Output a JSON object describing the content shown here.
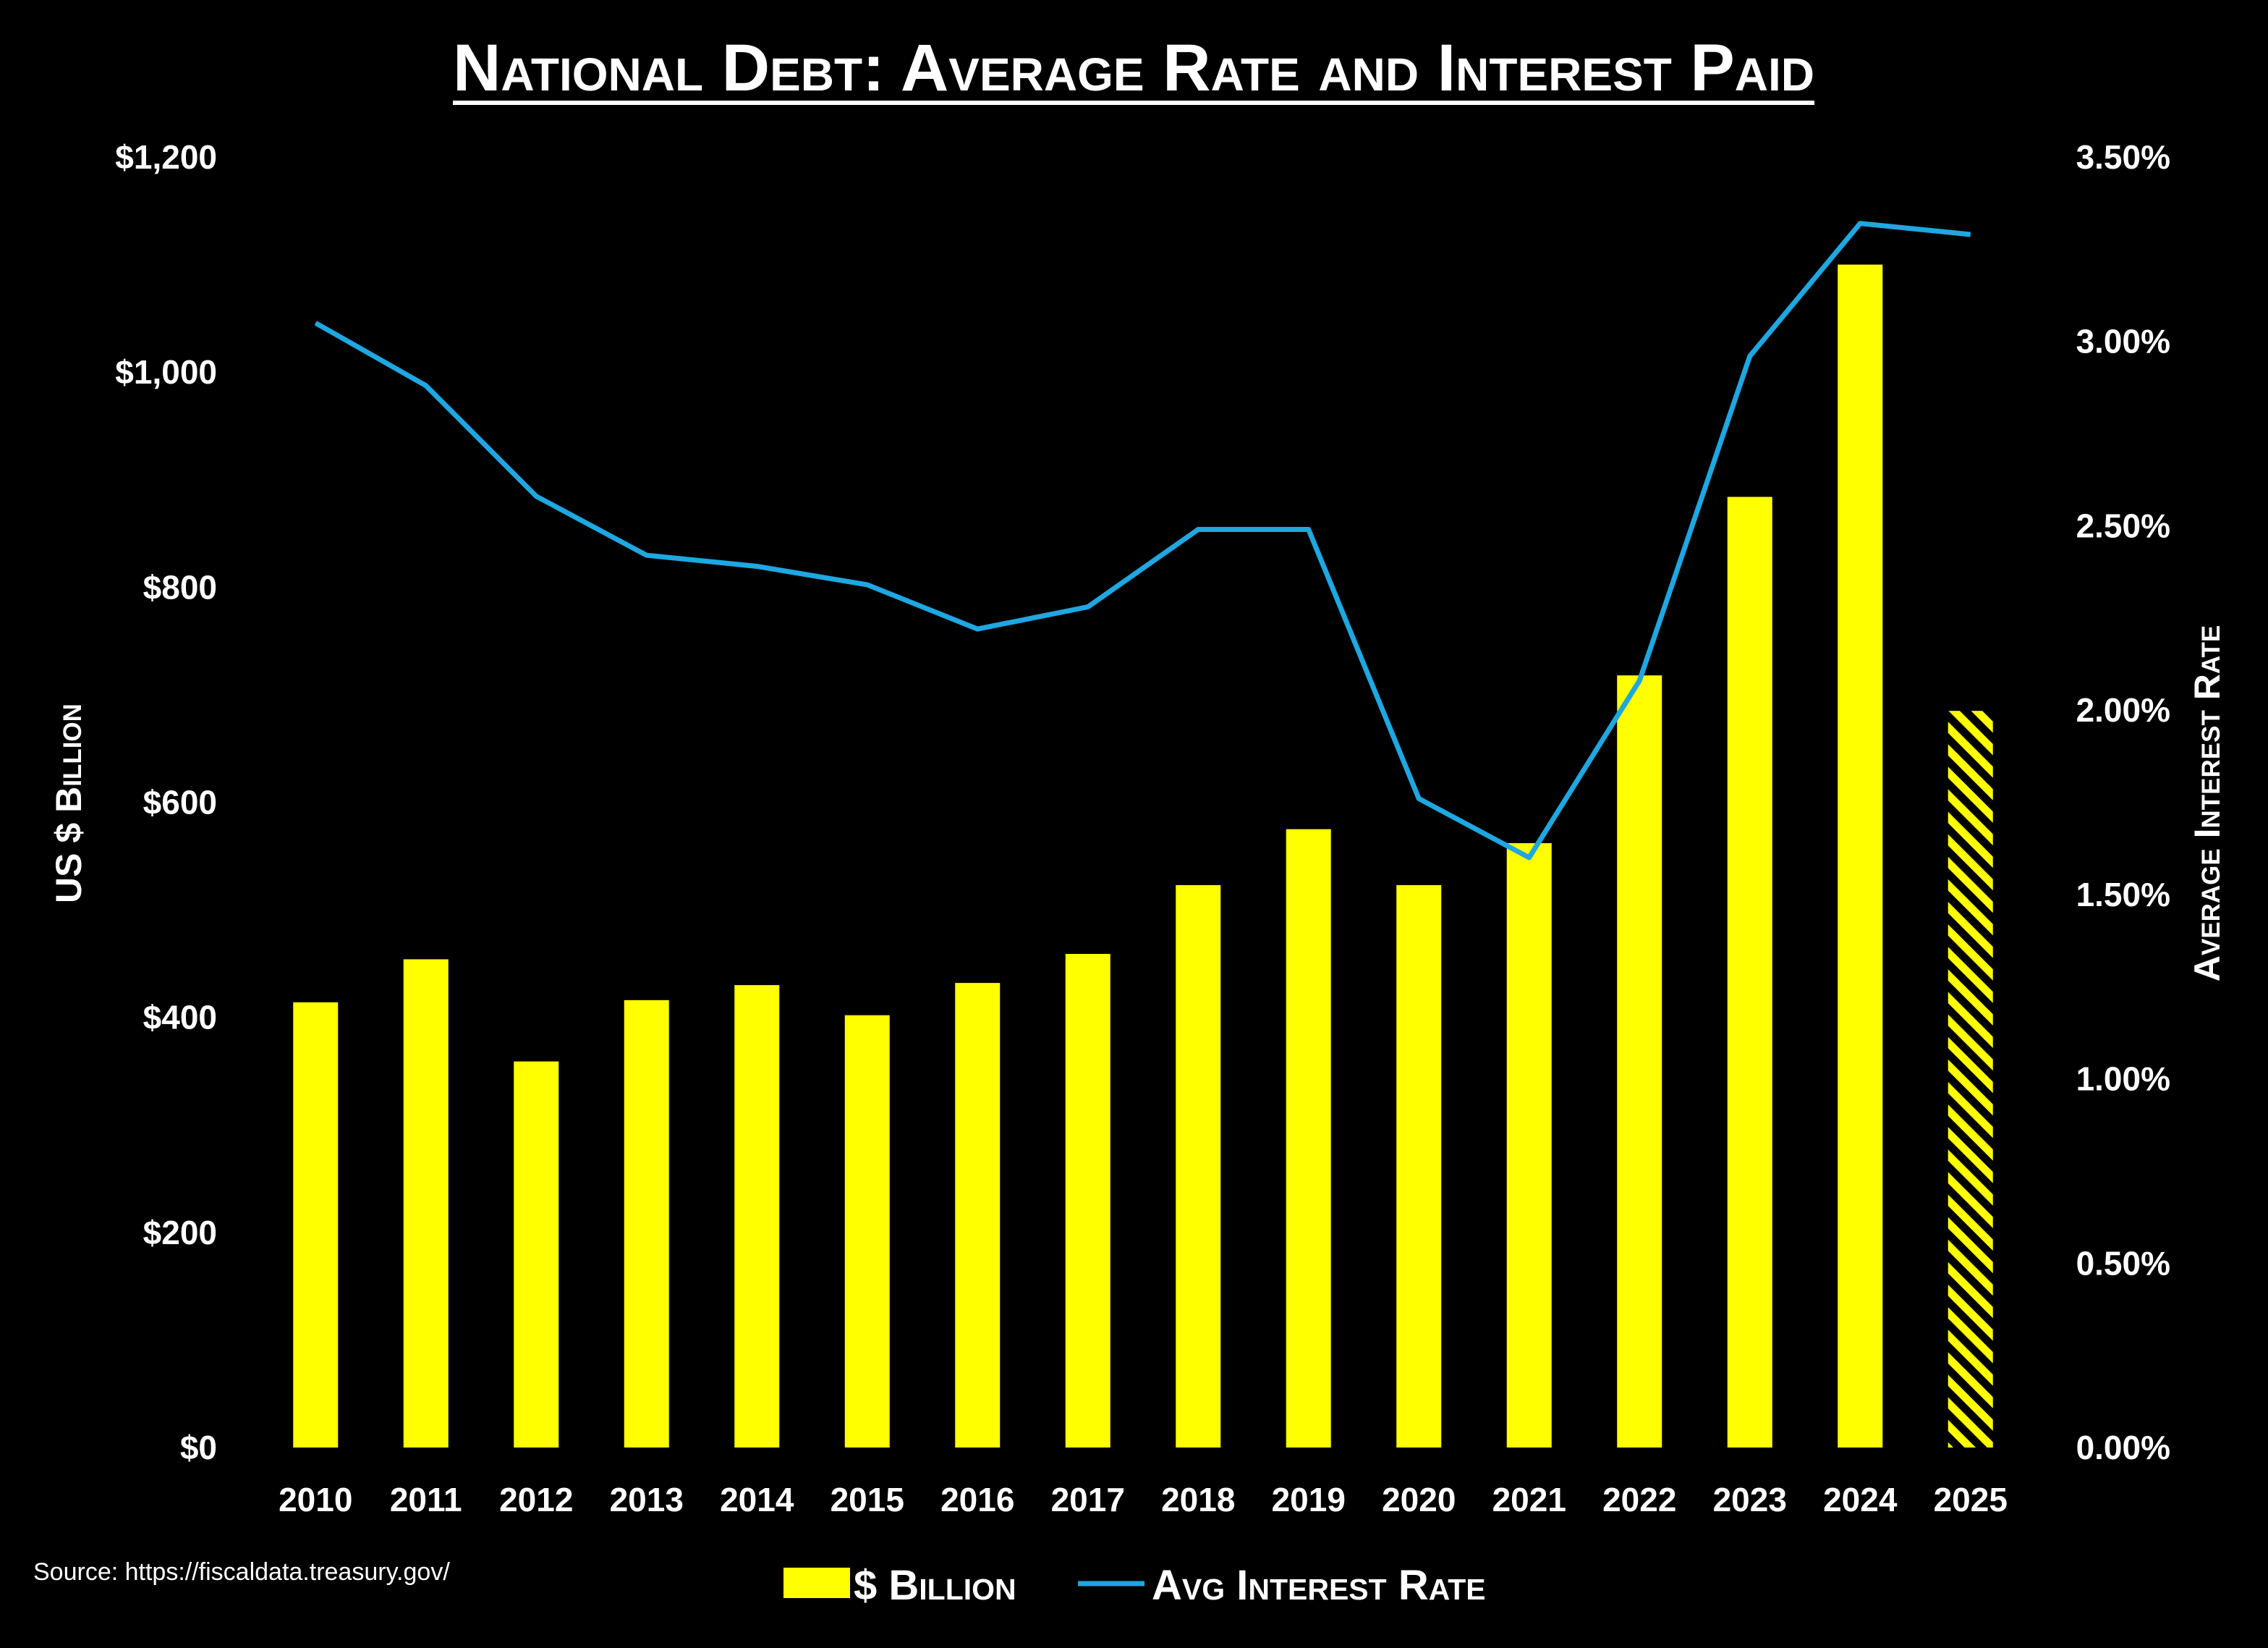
{
  "chart_data": {
    "type": "bar",
    "title": "National Debt: Average Rate and Interest Paid",
    "categories": [
      "2010",
      "2011",
      "2012",
      "2013",
      "2014",
      "2015",
      "2016",
      "2017",
      "2018",
      "2019",
      "2020",
      "2021",
      "2022",
      "2023",
      "2024",
      "2025"
    ],
    "series": [
      {
        "name": "$ Billion",
        "type": "bar",
        "axis": "left",
        "color": "#FFFF00",
        "values": [
          414,
          454,
          359,
          416,
          430,
          402,
          432,
          459,
          523,
          575,
          523,
          562,
          718,
          884,
          1100,
          685
        ],
        "note": "2025 bar shown with diagonal hatch (partial year)"
      },
      {
        "name": "Avg Interest Rate",
        "type": "line",
        "axis": "right",
        "color": "#1EA7E1",
        "values": [
          3.05,
          2.88,
          2.58,
          2.42,
          2.39,
          2.34,
          2.22,
          2.28,
          2.49,
          2.49,
          1.76,
          1.6,
          2.08,
          2.96,
          3.32,
          3.29
        ]
      }
    ],
    "y_left": {
      "label": "US $ Billion",
      "ylim": [
        0,
        1200
      ],
      "ticks": [
        0,
        200,
        400,
        600,
        800,
        1000,
        1200
      ],
      "tick_labels": [
        "$0",
        "$200",
        "$400",
        "$600",
        "$800",
        "$1,000",
        "$1,200"
      ]
    },
    "y_right": {
      "label": "Average Interest Rate",
      "ylim": [
        0,
        3.5
      ],
      "ticks": [
        0,
        0.5,
        1.0,
        1.5,
        2.0,
        2.5,
        3.0,
        3.5
      ],
      "tick_labels": [
        "0.00%",
        "0.50%",
        "1.00%",
        "1.50%",
        "2.00%",
        "2.50%",
        "3.00%",
        "3.50%"
      ]
    },
    "legend": {
      "position": "bottom-center",
      "items": [
        {
          "label": "$ Billion",
          "marker": "bar",
          "color": "#FFFF00"
        },
        {
          "label": "Avg Interest Rate",
          "marker": "line",
          "color": "#1EA7E1"
        }
      ]
    },
    "grid": false
  },
  "source_text": "Source: https://fiscaldata.treasury.gov/"
}
